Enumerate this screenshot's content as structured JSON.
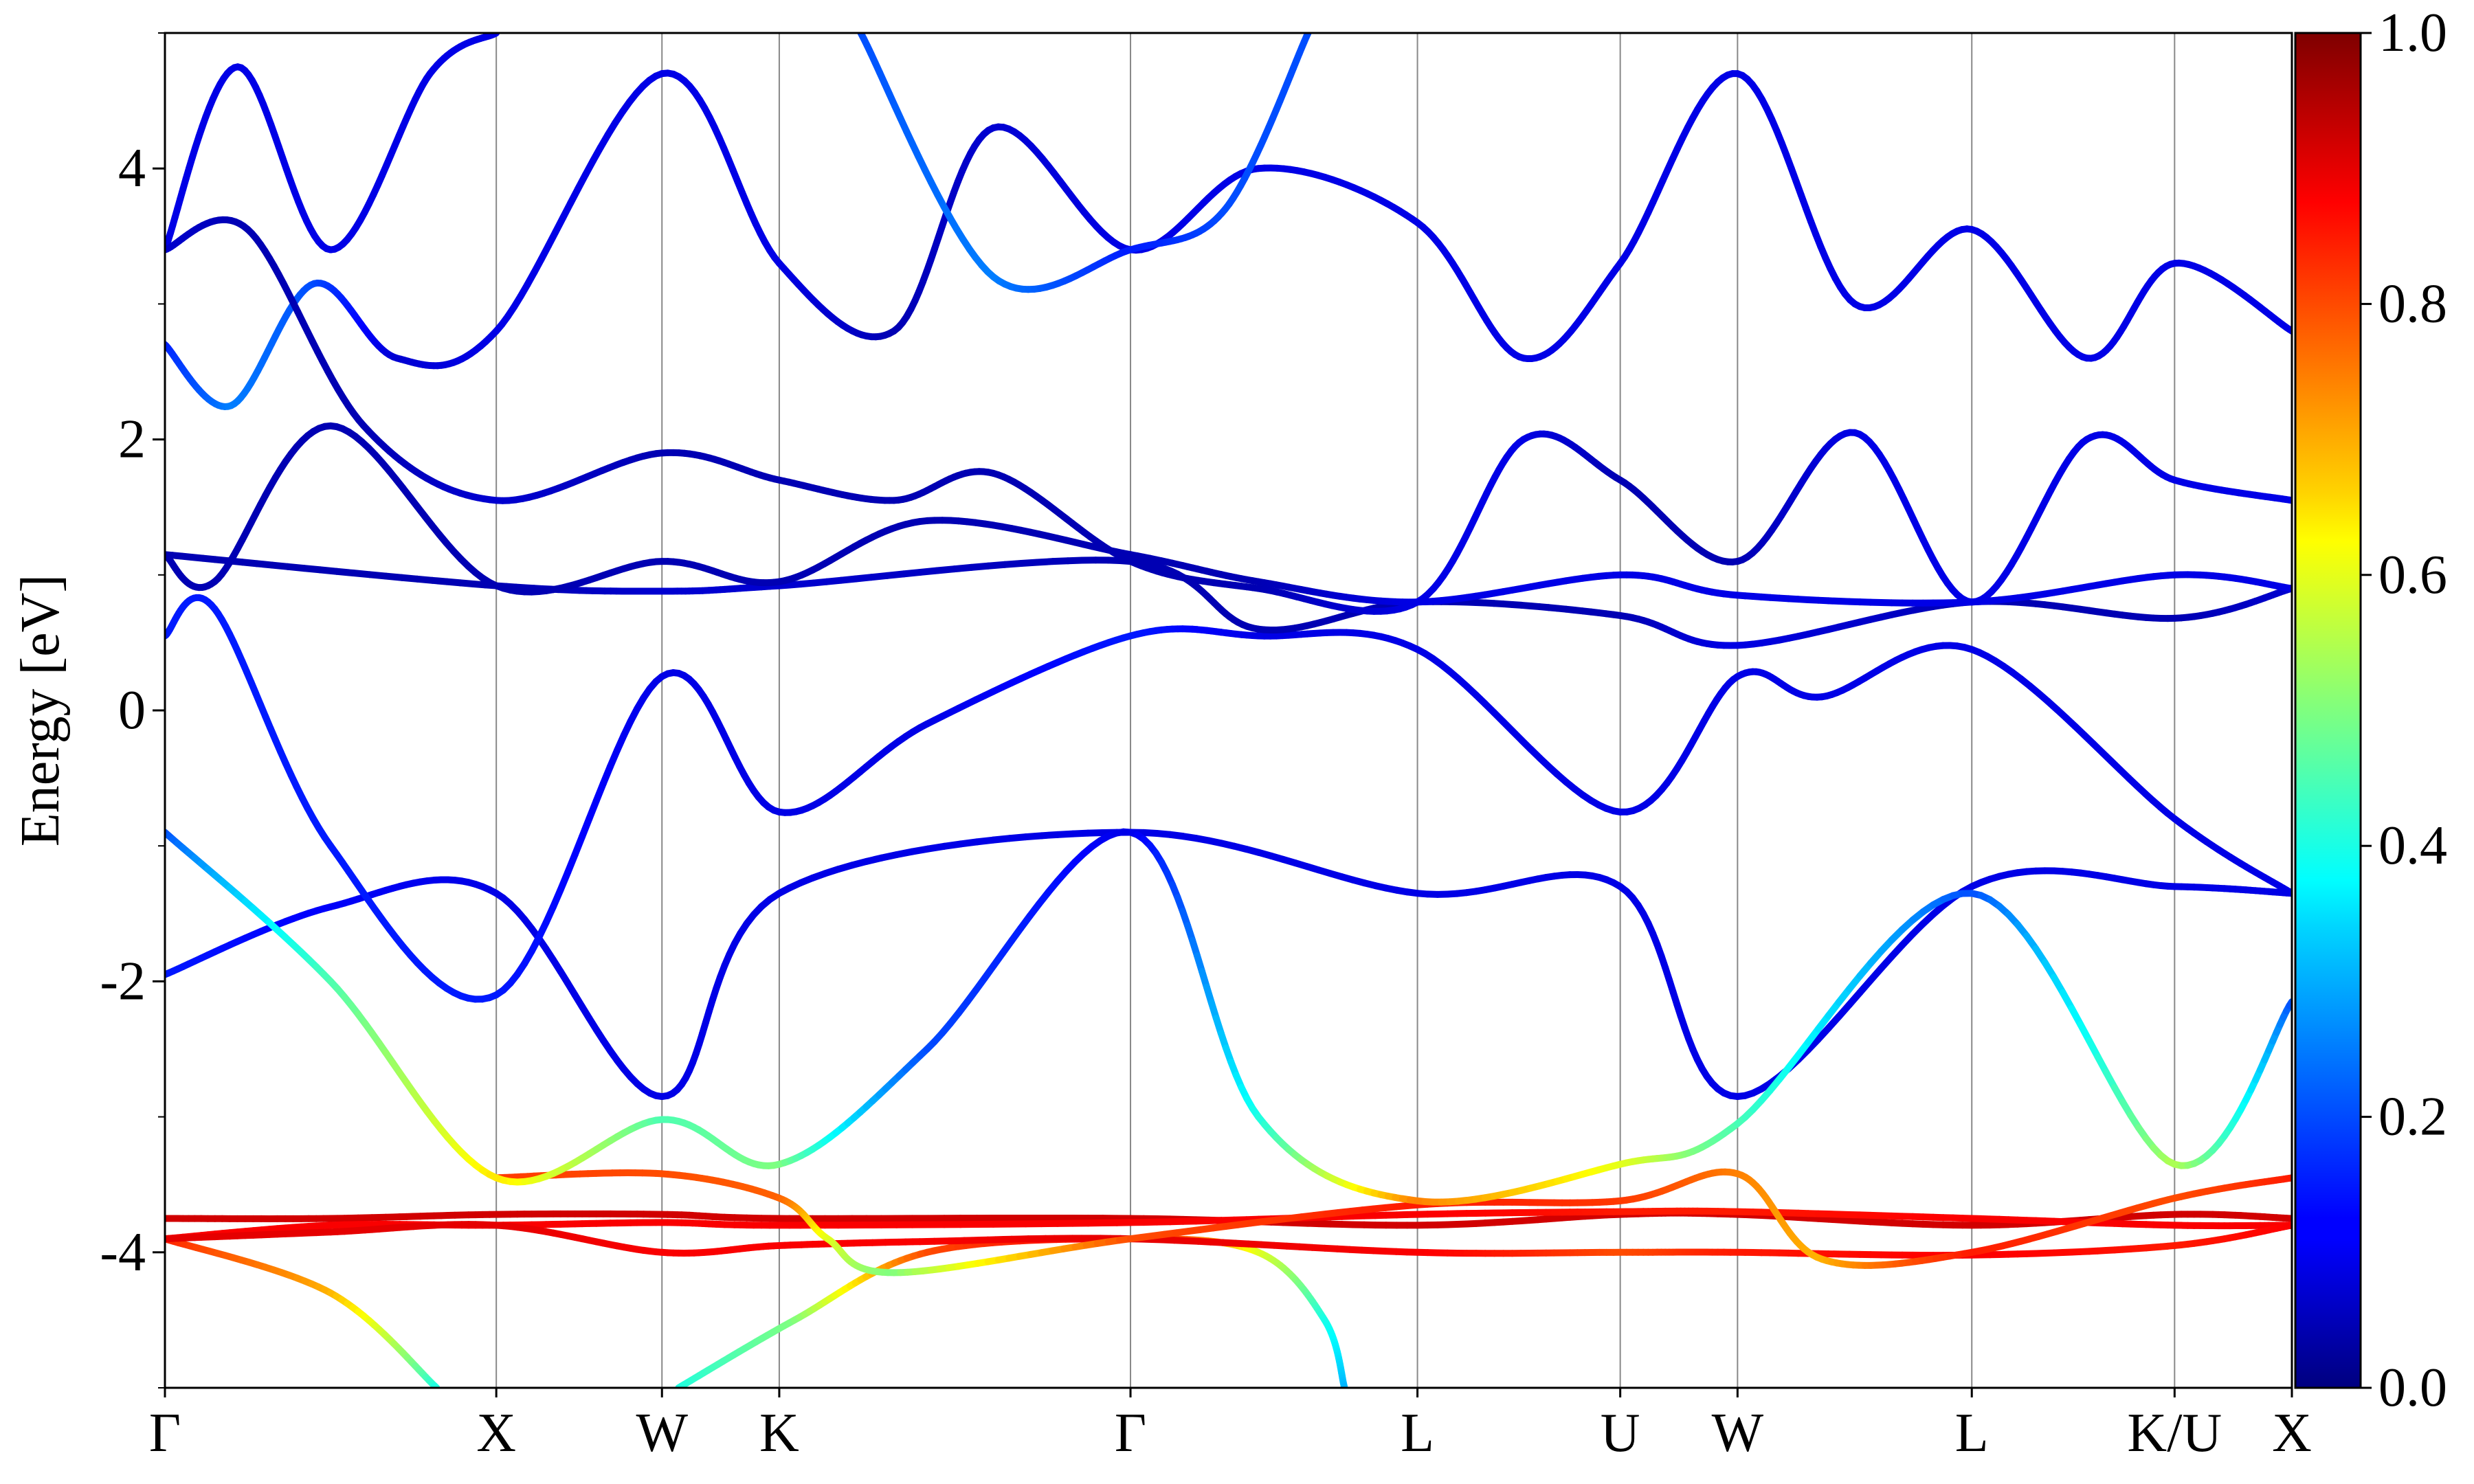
{
  "chart_data": {
    "type": "line",
    "title": "",
    "xlabel": "",
    "ylabel": "Energy [eV]",
    "ylim": [
      -5,
      5
    ],
    "grid": false,
    "kpath": [
      {
        "label": "Γ",
        "x": 0.0
      },
      {
        "label": "X",
        "x": 1.0
      },
      {
        "label": "W",
        "x": 1.5
      },
      {
        "label": "K",
        "x": 1.854
      },
      {
        "label": "Γ",
        "x": 2.914
      },
      {
        "label": "L",
        "x": 3.78
      },
      {
        "label": "U",
        "x": 4.392
      },
      {
        "label": "W",
        "x": 4.746
      },
      {
        "label": "L",
        "x": 5.453
      },
      {
        "label": "K/U",
        "x": 6.065
      },
      {
        "label": "X",
        "x": 6.419
      }
    ],
    "yticks": [
      {
        "label": "4",
        "value": 4
      },
      {
        "label": "2",
        "value": 2
      },
      {
        "label": "0",
        "value": 0
      },
      {
        "label": "-2",
        "value": -2
      },
      {
        "label": "-4",
        "value": -4
      }
    ],
    "yminor": [
      -5,
      -3,
      -1,
      1,
      3,
      5
    ],
    "colorbar": {
      "colormap": "jet",
      "range": [
        0.0,
        1.0
      ],
      "ticks": [
        {
          "label": "0.0",
          "value": 0.0
        },
        {
          "label": "0.2",
          "value": 0.2
        },
        {
          "label": "0.4",
          "value": 0.4
        },
        {
          "label": "0.6",
          "value": 0.6
        },
        {
          "label": "0.8",
          "value": 0.8
        },
        {
          "label": "1.0",
          "value": 1.0
        }
      ]
    },
    "bands": [
      {
        "points": [
          [
            0,
            -3.9,
            0.85
          ],
          [
            0.5,
            -4.3,
            0.7
          ],
          [
            0.82,
            -5.0,
            0.4
          ]
        ]
      },
      {
        "points": [
          [
            1.55,
            -5.0,
            0.4
          ],
          [
            1.9,
            -4.5,
            0.5
          ],
          [
            2.3,
            -4.0,
            0.8
          ],
          [
            2.914,
            -3.9,
            0.9
          ],
          [
            3.3,
            -4.0,
            0.6
          ],
          [
            3.5,
            -4.5,
            0.4
          ],
          [
            3.56,
            -5.0,
            0.3
          ]
        ]
      },
      {
        "points": [
          [
            0,
            -3.75,
            0.92
          ],
          [
            0.5,
            -3.75,
            0.92
          ],
          [
            1,
            -3.72,
            0.92
          ],
          [
            1.5,
            -3.72,
            0.92
          ],
          [
            1.854,
            -3.75,
            0.92
          ],
          [
            2.914,
            -3.75,
            0.92
          ],
          [
            3.78,
            -3.8,
            0.92
          ],
          [
            4.392,
            -3.72,
            0.92
          ],
          [
            4.746,
            -3.72,
            0.92
          ],
          [
            5.453,
            -3.8,
            0.92
          ],
          [
            6.065,
            -3.72,
            0.92
          ],
          [
            6.419,
            -3.75,
            0.92
          ]
        ]
      },
      {
        "points": [
          [
            0,
            -3.9,
            0.88
          ],
          [
            0.5,
            -3.8,
            0.88
          ],
          [
            1,
            -3.8,
            0.88
          ],
          [
            1.5,
            -3.78,
            0.88
          ],
          [
            1.854,
            -3.8,
            0.88
          ],
          [
            2.914,
            -3.78,
            0.88
          ],
          [
            3.78,
            -3.72,
            0.88
          ],
          [
            4.392,
            -3.7,
            0.85
          ],
          [
            4.746,
            -3.7,
            0.85
          ],
          [
            5.453,
            -3.75,
            0.88
          ],
          [
            6.065,
            -3.8,
            0.88
          ],
          [
            6.419,
            -3.8,
            0.88
          ]
        ]
      },
      {
        "points": [
          [
            0,
            -3.9,
            0.9
          ],
          [
            0.5,
            -3.85,
            0.9
          ],
          [
            1,
            -3.8,
            0.9
          ],
          [
            1.5,
            -4.0,
            0.88
          ],
          [
            1.854,
            -3.95,
            0.88
          ],
          [
            2.3,
            -3.92,
            0.88
          ],
          [
            2.914,
            -3.9,
            0.9
          ],
          [
            3.78,
            -4.0,
            0.88
          ],
          [
            4.392,
            -4.0,
            0.8
          ],
          [
            4.746,
            -4.0,
            0.85
          ],
          [
            5.453,
            -4.02,
            0.88
          ],
          [
            6.065,
            -3.95,
            0.85
          ],
          [
            6.419,
            -3.8,
            0.88
          ]
        ]
      },
      {
        "points": [
          [
            1,
            -3.45,
            0.82
          ],
          [
            1.5,
            -3.42,
            0.8
          ],
          [
            1.854,
            -3.6,
            0.78
          ],
          [
            2.0,
            -3.9,
            0.6
          ],
          [
            2.2,
            -4.15,
            0.5
          ],
          [
            2.914,
            -3.9,
            0.8
          ],
          [
            3.78,
            -3.65,
            0.85
          ],
          [
            4.392,
            -3.62,
            0.82
          ],
          [
            4.746,
            -3.42,
            0.75
          ],
          [
            5.0,
            -4.05,
            0.7
          ],
          [
            5.453,
            -4.0,
            0.85
          ],
          [
            6.065,
            -3.6,
            0.8
          ],
          [
            6.419,
            -3.45,
            0.85
          ]
        ]
      },
      {
        "points": [
          [
            0,
            -1.95,
            0.15
          ],
          [
            0.5,
            -1.45,
            0.12
          ],
          [
            1,
            -1.35,
            0.1
          ],
          [
            1.5,
            -2.85,
            0.1
          ],
          [
            1.854,
            -1.35,
            0.1
          ],
          [
            2.914,
            -0.9,
            0.1
          ],
          [
            3.78,
            -1.35,
            0.1
          ],
          [
            4.392,
            -1.3,
            0.1
          ],
          [
            4.746,
            -2.85,
            0.1
          ],
          [
            5.453,
            -1.3,
            0.1
          ],
          [
            6.065,
            -1.3,
            0.1
          ],
          [
            6.419,
            -1.35,
            0.1
          ]
        ]
      },
      {
        "points": [
          [
            0,
            -0.9,
            0.2
          ],
          [
            0.5,
            -2.0,
            0.45
          ],
          [
            1,
            -3.45,
            0.65
          ],
          [
            1.5,
            -3.02,
            0.45
          ],
          [
            1.854,
            -3.35,
            0.5
          ],
          [
            2.3,
            -2.5,
            0.2
          ],
          [
            2.914,
            -0.9,
            0.1
          ],
          [
            3.3,
            -3.0,
            0.4
          ],
          [
            3.78,
            -3.62,
            0.75
          ],
          [
            4.392,
            -3.35,
            0.6
          ],
          [
            4.746,
            -3.05,
            0.45
          ],
          [
            5.453,
            -1.35,
            0.2
          ],
          [
            6.065,
            -3.35,
            0.55
          ],
          [
            6.419,
            -2.15,
            0.2
          ]
        ]
      },
      {
        "points": [
          [
            0,
            0.55,
            0.15
          ],
          [
            0.15,
            0.75,
            0.15
          ],
          [
            0.5,
            -1.0,
            0.15
          ],
          [
            1,
            -2.1,
            0.15
          ],
          [
            1.5,
            0.25,
            0.1
          ],
          [
            1.854,
            -0.75,
            0.1
          ],
          [
            2.3,
            -0.1,
            0.1
          ],
          [
            2.914,
            0.55,
            0.15
          ],
          [
            3.3,
            0.55,
            0.1
          ],
          [
            3.78,
            0.45,
            0.1
          ],
          [
            4.392,
            -0.75,
            0.1
          ],
          [
            4.746,
            0.25,
            0.1
          ],
          [
            5.0,
            0.1,
            0.1
          ],
          [
            5.453,
            0.45,
            0.1
          ],
          [
            6.065,
            -0.8,
            0.1
          ],
          [
            6.419,
            -1.35,
            0.1
          ]
        ]
      },
      {
        "points": [
          [
            0,
            1.15,
            0.05
          ],
          [
            1,
            0.92,
            0.05
          ],
          [
            1.5,
            0.88,
            0.08
          ],
          [
            1.854,
            0.92,
            0.08
          ],
          [
            2.914,
            1.1,
            0.05
          ],
          [
            3.3,
            0.6,
            0.05
          ],
          [
            3.78,
            0.8,
            0.05
          ],
          [
            4.392,
            0.7,
            0.05
          ],
          [
            4.746,
            0.48,
            0.1
          ],
          [
            5.453,
            0.8,
            0.05
          ],
          [
            6.065,
            0.68,
            0.05
          ],
          [
            6.419,
            0.9,
            0.08
          ]
        ]
      },
      {
        "points": [
          [
            0,
            1.15,
            0.05
          ],
          [
            0.15,
            0.95,
            0.05
          ],
          [
            0.5,
            2.1,
            0.05
          ],
          [
            1,
            0.92,
            0.05
          ],
          [
            1.5,
            1.1,
            0.05
          ],
          [
            1.854,
            0.95,
            0.05
          ],
          [
            2.3,
            1.4,
            0.05
          ],
          [
            2.914,
            1.15,
            0.05
          ],
          [
            3.3,
            0.95,
            0.05
          ],
          [
            3.78,
            0.8,
            0.1
          ],
          [
            4.392,
            1.0,
            0.1
          ],
          [
            4.746,
            0.85,
            0.1
          ],
          [
            5.453,
            0.8,
            0.1
          ],
          [
            6.065,
            1.0,
            0.1
          ],
          [
            6.419,
            0.9,
            0.1
          ]
        ]
      },
      {
        "points": [
          [
            0,
            2.7,
            0.15
          ],
          [
            0.2,
            2.25,
            0.25
          ],
          [
            0.45,
            3.15,
            0.2
          ],
          [
            0.7,
            2.6,
            0.08
          ],
          [
            1,
            2.8,
            0.1
          ],
          [
            1.5,
            4.7,
            0.1
          ],
          [
            1.854,
            3.3,
            0.1
          ],
          [
            2.2,
            2.8,
            0.05
          ],
          [
            2.5,
            4.3,
            0.08
          ],
          [
            2.914,
            3.4,
            0.1
          ],
          [
            3.3,
            4.0,
            0.1
          ],
          [
            3.78,
            3.6,
            0.1
          ],
          [
            4.1,
            2.6,
            0.1
          ],
          [
            4.392,
            3.3,
            0.1
          ],
          [
            4.746,
            4.7,
            0.1
          ],
          [
            5.1,
            3.0,
            0.1
          ],
          [
            5.453,
            3.55,
            0.1
          ],
          [
            5.8,
            2.6,
            0.1
          ],
          [
            6.065,
            3.3,
            0.1
          ],
          [
            6.419,
            2.8,
            0.1
          ]
        ]
      },
      {
        "points": [
          [
            0,
            3.4,
            0.1
          ],
          [
            0.22,
            4.75,
            0.1
          ],
          [
            0.5,
            3.4,
            0.1
          ],
          [
            0.8,
            4.7,
            0.1
          ],
          [
            1,
            5.0,
            0.1
          ]
        ]
      },
      {
        "points": [
          [
            0,
            3.4,
            0.08
          ],
          [
            0.25,
            3.55,
            0.05
          ],
          [
            0.6,
            2.1,
            0.05
          ],
          [
            1,
            1.55,
            0.08
          ],
          [
            1.5,
            1.9,
            0.05
          ],
          [
            1.854,
            1.7,
            0.05
          ],
          [
            2.2,
            1.55,
            0.05
          ],
          [
            2.5,
            1.75,
            0.05
          ],
          [
            2.914,
            1.1,
            0.05
          ],
          [
            3.3,
            0.9,
            0.05
          ],
          [
            3.78,
            0.8,
            0.1
          ],
          [
            4.1,
            2.0,
            0.1
          ],
          [
            4.392,
            1.7,
            0.05
          ],
          [
            4.746,
            1.1,
            0.05
          ],
          [
            5.1,
            2.05,
            0.1
          ],
          [
            5.453,
            0.8,
            0.1
          ],
          [
            5.8,
            2.0,
            0.1
          ],
          [
            6.065,
            1.7,
            0.1
          ],
          [
            6.419,
            1.55,
            0.1
          ]
        ]
      },
      {
        "points": [
          [
            2.1,
            5.0,
            0.2
          ],
          [
            2.5,
            3.2,
            0.25
          ],
          [
            2.914,
            3.4,
            0.15
          ],
          [
            3.2,
            3.7,
            0.2
          ],
          [
            3.45,
            5.0,
            0.2
          ]
        ]
      }
    ]
  }
}
